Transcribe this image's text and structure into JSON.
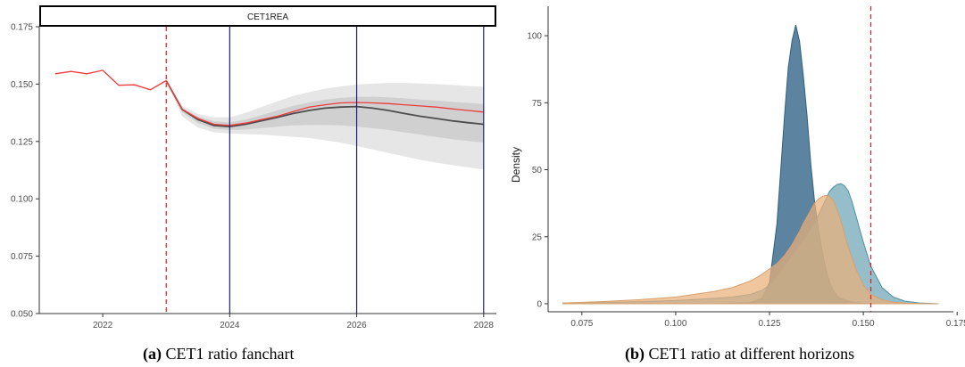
{
  "captions": [
    {
      "label": "(a)",
      "text": "CET1 ratio fanchart"
    },
    {
      "label": "(b)",
      "text": "CET1 ratio at different horizons"
    }
  ],
  "colors": {
    "history_line": "#ee3b3b",
    "median_line": "#4d4d4d",
    "band_outer": "#e6e6e6",
    "band_inner": "#d0d0d0",
    "vline_blue": "#1f1f7a",
    "vline_red": "#e41a1c",
    "density_2024": "#3f6f8f",
    "density_2026": "#6aa3b4",
    "density_2028": "#eab07a"
  },
  "chart_data": [
    {
      "type": "line",
      "panel_title": "CET1REA",
      "xlabel": "",
      "ylabel": "",
      "xlim": [
        2021.0,
        2028.2
      ],
      "ylim": [
        0.05,
        0.175
      ],
      "x_ticks": [
        2022,
        2024,
        2026,
        2028
      ],
      "y_ticks": [
        "0.050",
        "0.075",
        "0.100",
        "0.125",
        "0.150",
        "0.175"
      ],
      "grid": false,
      "vertical_lines": {
        "dashed_red": [
          2023.0
        ],
        "solid_blue": [
          2024.0,
          2026.0,
          2028.0
        ]
      },
      "history": {
        "x": [
          2021.25,
          2021.5,
          2021.75,
          2022.0,
          2022.25,
          2022.5,
          2022.75,
          2023.0
        ],
        "y": [
          0.1545,
          0.1555,
          0.1545,
          0.156,
          0.1495,
          0.1497,
          0.1475,
          0.1515
        ]
      },
      "forecast": {
        "x": [
          2023.0,
          2023.25,
          2023.5,
          2023.75,
          2024.0,
          2024.25,
          2024.5,
          2024.75,
          2025.0,
          2025.25,
          2025.5,
          2025.75,
          2026.0,
          2026.25,
          2026.5,
          2026.75,
          2027.0,
          2027.25,
          2027.5,
          2027.75,
          2028.0
        ],
        "red": [
          0.1515,
          0.139,
          0.135,
          0.1325,
          0.132,
          0.133,
          0.1345,
          0.136,
          0.138,
          0.14,
          0.141,
          0.1418,
          0.142,
          0.1418,
          0.1415,
          0.141,
          0.1405,
          0.14,
          0.1392,
          0.1385,
          0.1378
        ],
        "median": [
          0.1515,
          0.139,
          0.1345,
          0.132,
          0.1315,
          0.1325,
          0.134,
          0.1355,
          0.1372,
          0.1385,
          0.1395,
          0.14,
          0.1402,
          0.1395,
          0.1385,
          0.1372,
          0.136,
          0.135,
          0.134,
          0.1332,
          0.1325
        ],
        "outer_lo": [
          0.1515,
          0.136,
          0.131,
          0.129,
          0.1285,
          0.1282,
          0.128,
          0.1275,
          0.127,
          0.1265,
          0.1255,
          0.1245,
          0.123,
          0.1215,
          0.12,
          0.1185,
          0.117,
          0.1158,
          0.1147,
          0.1137,
          0.1128
        ],
        "outer_hi": [
          0.1515,
          0.1405,
          0.137,
          0.1355,
          0.1355,
          0.1375,
          0.14,
          0.1425,
          0.1448,
          0.1465,
          0.148,
          0.149,
          0.1498,
          0.1502,
          0.1505,
          0.1505,
          0.1503,
          0.15,
          0.1496,
          0.1492,
          0.1488
        ],
        "inner_lo": [
          0.1515,
          0.1378,
          0.133,
          0.1305,
          0.13,
          0.1302,
          0.1308,
          0.1315,
          0.132,
          0.1322,
          0.1322,
          0.132,
          0.1315,
          0.1308,
          0.13,
          0.129,
          0.128,
          0.127,
          0.126,
          0.1252,
          0.1245
        ],
        "inner_hi": [
          0.1515,
          0.1395,
          0.1358,
          0.1338,
          0.1333,
          0.1345,
          0.1365,
          0.1385,
          0.1405,
          0.142,
          0.1432,
          0.144,
          0.1445,
          0.1445,
          0.1442,
          0.1438,
          0.1433,
          0.1428,
          0.1423,
          0.1418,
          0.1413
        ]
      }
    },
    {
      "type": "area",
      "xlabel": "",
      "ylabel": "Density",
      "xlim": [
        0.066,
        0.174
      ],
      "ylim": [
        -3,
        111
      ],
      "x_ticks": [
        "0.075",
        "0.100",
        "0.125",
        "0.150",
        "0.175"
      ],
      "y_ticks": [
        "0",
        "25",
        "50",
        "75",
        "100"
      ],
      "grid": false,
      "vertical_lines": {
        "dashed_red": [
          0.152
        ]
      },
      "x": [
        0.07,
        0.08,
        0.09,
        0.1,
        0.105,
        0.11,
        0.115,
        0.12,
        0.123,
        0.125,
        0.127,
        0.128,
        0.129,
        0.13,
        0.131,
        0.132,
        0.133,
        0.134,
        0.135,
        0.136,
        0.137,
        0.138,
        0.139,
        0.14,
        0.141,
        0.142,
        0.143,
        0.144,
        0.145,
        0.146,
        0.147,
        0.148,
        0.15,
        0.152,
        0.155,
        0.158,
        0.161,
        0.165,
        0.17
      ],
      "series": [
        {
          "values": [
            0,
            0,
            0,
            0,
            0,
            0,
            0.2,
            0.5,
            2,
            8,
            30,
            50,
            70,
            88,
            98,
            104,
            98,
            85,
            70,
            52,
            38,
            28,
            20,
            13,
            8,
            5,
            3,
            2,
            1.5,
            1,
            0.6,
            0.4,
            0.2,
            0,
            0,
            0,
            0,
            0,
            0
          ]
        },
        {
          "values": [
            0.3,
            0.5,
            0.8,
            1.2,
            1.6,
            2,
            2.5,
            3.5,
            5,
            7,
            10,
            12,
            14,
            16,
            18,
            20,
            22,
            24,
            26,
            28,
            30,
            33,
            36,
            39,
            42,
            43.5,
            44.5,
            44.8,
            44,
            42,
            38,
            33,
            23,
            14,
            6,
            2.5,
            1,
            0.3,
            0
          ]
        },
        {
          "values": [
            0.3,
            0.8,
            1.5,
            2.5,
            3.5,
            4.5,
            6,
            8.5,
            11,
            13,
            15,
            16.5,
            18,
            20,
            22,
            24.5,
            27,
            30,
            32.5,
            35,
            37.5,
            39,
            40,
            40.5,
            40,
            38.5,
            35,
            31,
            26,
            21,
            17,
            13,
            7,
            3.5,
            1.5,
            0.6,
            0.3,
            0.1,
            0
          ]
        }
      ]
    }
  ]
}
